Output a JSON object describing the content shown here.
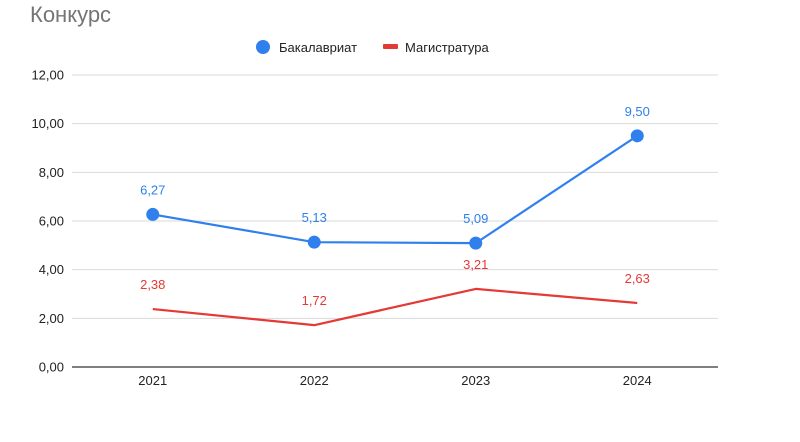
{
  "colors": {
    "bachelor": "#2f80ed",
    "master": "#e53935",
    "grid": "#d9d9d9",
    "axis": "#333333",
    "title": "#757575"
  },
  "chart_data": {
    "type": "line",
    "title": "Конкурс",
    "xlabel": "",
    "ylabel": "",
    "categories": [
      "2021",
      "2022",
      "2023",
      "2024"
    ],
    "ylim": [
      0,
      12
    ],
    "yticks": [
      0,
      2,
      4,
      6,
      8,
      10,
      12
    ],
    "ytick_labels": [
      "0,00",
      "2,00",
      "4,00",
      "6,00",
      "8,00",
      "10,00",
      "12,00"
    ],
    "grid": true,
    "legend_position": "top-center",
    "series": [
      {
        "name": "Бакалавриат",
        "values": [
          6.27,
          5.13,
          5.09,
          9.5
        ],
        "labels": [
          "6,27",
          "5,13",
          "5,09",
          "9,50"
        ],
        "marker": "circle",
        "color": "#2f80ed"
      },
      {
        "name": "Магистратура",
        "values": [
          2.38,
          1.72,
          3.21,
          2.63
        ],
        "labels": [
          "2,38",
          "1,72",
          "3,21",
          "2,63"
        ],
        "marker": "none",
        "color": "#e53935"
      }
    ]
  }
}
